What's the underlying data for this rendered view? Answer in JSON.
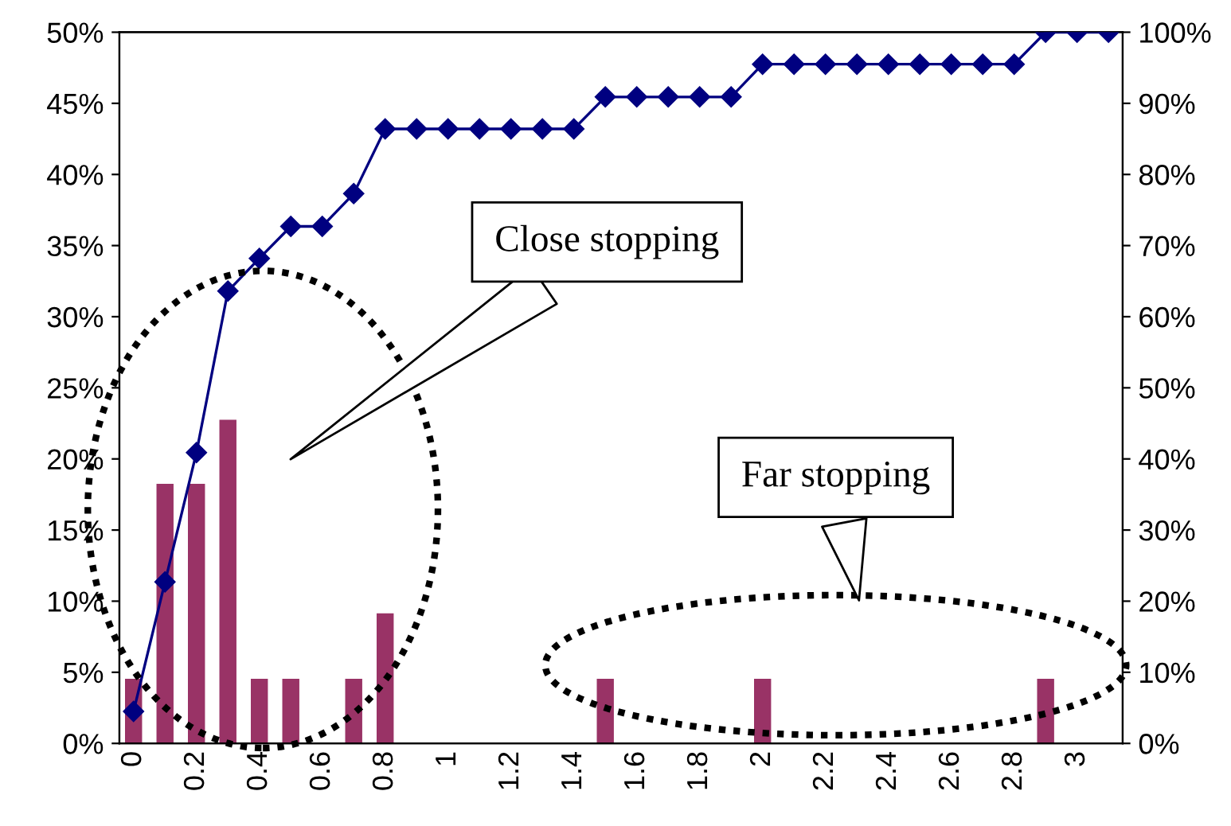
{
  "chart_data": {
    "type": "bar",
    "categories": [
      "0",
      null,
      "0.2",
      null,
      "0.4",
      null,
      "0.6",
      null,
      "0.8",
      null,
      "1",
      null,
      "1.2",
      null,
      "1.4",
      null,
      "1.6",
      null,
      "1.8",
      null,
      "2",
      null,
      "2.2",
      null,
      "2.4",
      null,
      "2.6",
      null,
      "2.8",
      null,
      "3",
      null
    ],
    "series": [
      {
        "color": "#993366",
        "axis": "y",
        "values": [
          4.5,
          18.2,
          18.2,
          22.7,
          4.5,
          4.5,
          0,
          4.5,
          9.1,
          0,
          0,
          0,
          0,
          0,
          0,
          4.5,
          0,
          0,
          0,
          0,
          4.5,
          0,
          0,
          0,
          0,
          0,
          0,
          0,
          0,
          4.5,
          0,
          0
        ]
      },
      {
        "type": "line",
        "color": "#000080",
        "axis": "y2",
        "marker": "diamond",
        "line_style": "solid",
        "values": [
          4.5,
          22.7,
          40.9,
          63.6,
          68.2,
          72.7,
          72.7,
          77.3,
          86.4,
          86.4,
          86.4,
          86.4,
          86.4,
          86.4,
          86.4,
          90.9,
          90.9,
          90.9,
          90.9,
          90.9,
          95.5,
          95.5,
          95.5,
          95.5,
          95.5,
          95.5,
          95.5,
          95.5,
          95.5,
          100,
          100,
          100
        ]
      }
    ],
    "ylim": [
      0,
      50
    ],
    "yticks": [
      {
        "value": 0,
        "label": "0%"
      },
      {
        "value": 5,
        "label": "5%"
      },
      {
        "value": 10,
        "label": "10%"
      },
      {
        "value": 15,
        "label": "15%"
      },
      {
        "value": 20,
        "label": "20%"
      },
      {
        "value": 25,
        "label": "25%"
      },
      {
        "value": 30,
        "label": "30%"
      },
      {
        "value": 35,
        "label": "35%"
      },
      {
        "value": 40,
        "label": "40%"
      },
      {
        "value": 45,
        "label": "45%"
      },
      {
        "value": 50,
        "label": "50%"
      }
    ],
    "y2lim": [
      0,
      100
    ],
    "y2ticks": [
      {
        "value": 0,
        "label": "0%"
      },
      {
        "value": 10,
        "label": "10%"
      },
      {
        "value": 20,
        "label": "20%"
      },
      {
        "value": 30,
        "label": "30%"
      },
      {
        "value": 40,
        "label": "40%"
      },
      {
        "value": 50,
        "label": "50%"
      },
      {
        "value": 60,
        "label": "60%"
      },
      {
        "value": 70,
        "label": "70%"
      },
      {
        "value": 80,
        "label": "80%"
      },
      {
        "value": 90,
        "label": "90%"
      },
      {
        "value": 100,
        "label": "100%"
      }
    ],
    "annotations": [
      "Close stopping",
      "Far stopping"
    ],
    "grid": false,
    "legend": false
  }
}
